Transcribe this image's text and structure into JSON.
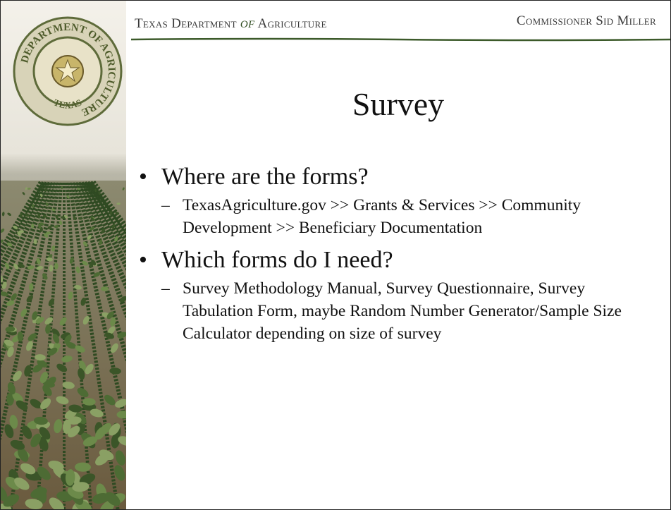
{
  "header": {
    "left_part1": "Texas Department",
    "connector": "of",
    "left_part2": "Agriculture",
    "right": "Commissioner Sid Miller"
  },
  "seal": {
    "ring_text": "DEPARTMENT OF AGRICULTURE",
    "bottom_text": "TEXAS"
  },
  "title": "Survey",
  "bullets": [
    {
      "text": "Where are the forms?",
      "sub": [
        "TexasAgriculture.gov >> Grants & Services >> Community Development >> Beneficiary Documentation"
      ]
    },
    {
      "text": "Which forms do I need?",
      "sub": [
        "Survey Methodology Manual, Survey Questionnaire, Survey Tabulation Form, maybe Random Number Generator/Sample Size Calculator depending on size of survey"
      ]
    }
  ]
}
